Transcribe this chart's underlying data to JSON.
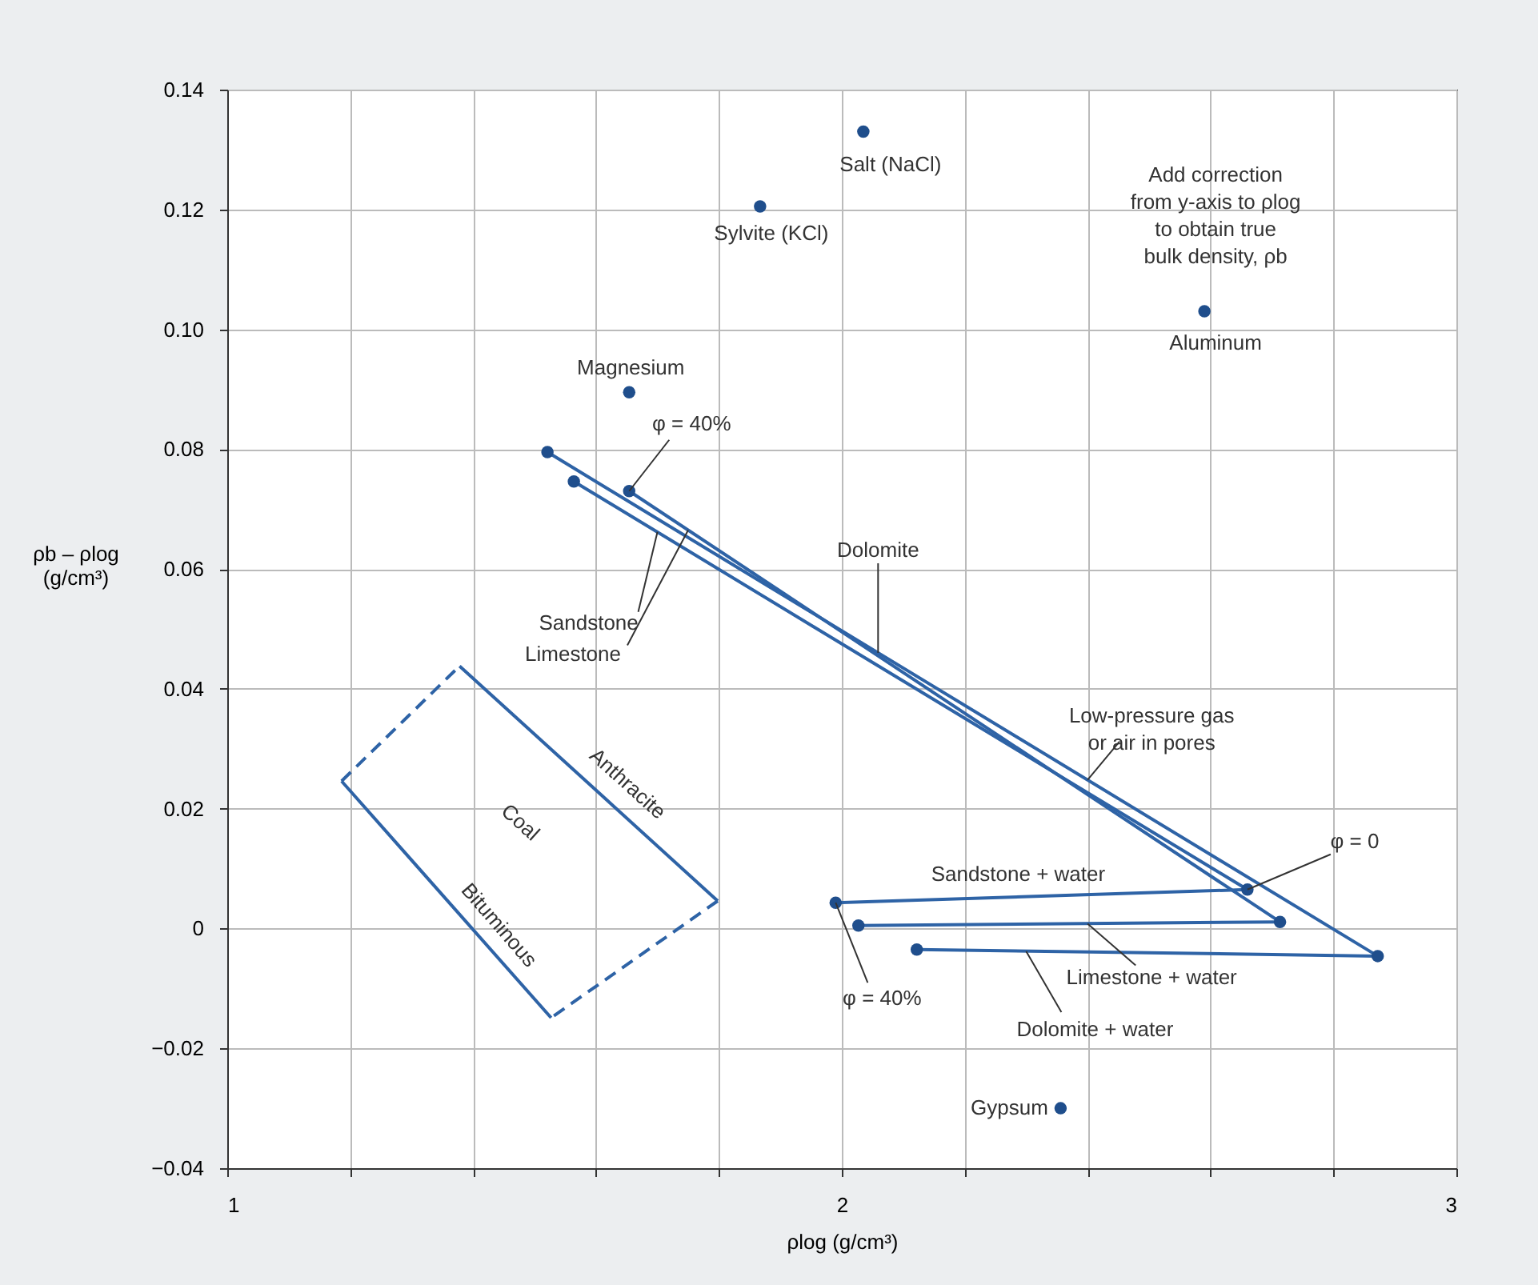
{
  "chart_data": {
    "type": "line",
    "xlabel": "ρlog (g/cm³)",
    "ylabel": "ρb – ρlog\n(g/cm³)",
    "xlim": [
      1,
      3
    ],
    "ylim": [
      -0.04,
      0.14
    ],
    "xticks": [
      1,
      {
        "value": 1.2,
        "label": null
      },
      {
        "value": 1.4,
        "label": null
      },
      {
        "value": 1.6,
        "label": null
      },
      {
        "value": 1.8,
        "label": null
      },
      2,
      {
        "value": 2.2,
        "label": null
      },
      {
        "value": 2.4,
        "label": null
      },
      {
        "value": 2.6,
        "label": null
      },
      {
        "value": 2.8,
        "label": null
      },
      3
    ],
    "yticks": [
      {
        "value": -0.04,
        "label": "−0.04"
      },
      {
        "value": -0.02,
        "label": "−0.02"
      },
      0,
      {
        "value": 0.02,
        "label": "0.02"
      },
      {
        "value": 0.04,
        "label": "0.04"
      },
      {
        "value": 0.06,
        "label": "0.06"
      },
      {
        "value": 0.08,
        "label": "0.08"
      },
      {
        "value": 0.1,
        "label": "0.10"
      },
      {
        "value": 0.12,
        "label": "0.12"
      },
      {
        "value": 0.14,
        "label": "0.14"
      }
    ],
    "grid": true,
    "series": [
      {
        "color": "#2e63a6",
        "x": [
          1.521,
          2.872
        ],
        "values": [
          0.0795,
          -0.0046
        ]
      },
      {
        "color": "#2e63a6",
        "x": [
          1.564,
          2.66
        ],
        "values": [
          0.0746,
          0.0065
        ]
      },
      {
        "color": "#2e63a6",
        "x": [
          1.654,
          2.713
        ],
        "values": [
          0.073,
          0.0011
        ]
      },
      {
        "color": "#2e63a6",
        "x": [
          1.99,
          2.66
        ],
        "values": [
          0.0043,
          0.0065
        ]
      },
      {
        "color": "#2e63a6",
        "x": [
          2.027,
          2.713
        ],
        "values": [
          0.0005,
          0.0011
        ]
      },
      {
        "color": "#2e63a6",
        "x": [
          2.122,
          2.872
        ],
        "values": [
          -0.0035,
          -0.0046
        ]
      },
      {
        "color": "#2e63a6",
        "x": [
          1.378,
          1.798
        ],
        "values": [
          0.0438,
          0.0046
        ]
      },
      {
        "color": "#2e63a6",
        "x": [
          1.186,
          1.527
        ],
        "values": [
          0.0246,
          -0.0149
        ]
      },
      {
        "color": "#2e63a6",
        "line_style": "dashed",
        "x": [
          1.186,
          1.378
        ],
        "values": [
          0.0246,
          0.0438
        ]
      },
      {
        "color": "#2e63a6",
        "line_style": "dashed",
        "x": [
          1.798,
          1.527
        ],
        "values": [
          0.0046,
          -0.0149
        ]
      },
      {
        "type": "scatter",
        "marker": "circle",
        "color": "#1f4e8c",
        "x": [
          2.035,
          1.867,
          2.59,
          1.654,
          2.356,
          1.521,
          1.564,
          1.654,
          2.66,
          2.713,
          2.872,
          1.99,
          2.027,
          2.122
        ],
        "values": [
          0.133,
          0.1205,
          0.103,
          0.0895,
          -0.03,
          0.0795,
          0.0746,
          0.073,
          0.0065,
          0.0011,
          -0.0046,
          0.0043,
          0.0005,
          -0.0035
        ]
      }
    ],
    "annotations": [
      {
        "text": "Salt (NaCl)",
        "x": 2.035,
        "y": 0.133
      },
      {
        "text": "Sylvite (KCl)",
        "x": 1.867,
        "y": 0.1205
      },
      {
        "text": "Add correction\nfrom y-axis to ρlog\nto obtain true\nbulk density, ρb",
        "x": 2.59,
        "y": 0.103
      },
      {
        "text": "Aluminum",
        "x": 2.59,
        "y": 0.103
      },
      {
        "text": "Magnesium",
        "x": 1.654,
        "y": 0.0895
      },
      {
        "text": "φ = 40%",
        "x": 1.654,
        "y": 0.073
      },
      {
        "text": "Dolomite",
        "x": 2.059,
        "y": 0.046
      },
      {
        "text": "Sandstone",
        "x": 1.7,
        "y": 0.0662
      },
      {
        "text": "Limestone",
        "x": 1.75,
        "y": 0.0665
      },
      {
        "text": "Low-pressure gas\nor air in pores",
        "x": 2.4,
        "y": 0.0248
      },
      {
        "text": "Anthracite",
        "x": 1.6,
        "y": 0.0231
      },
      "Coal",
      {
        "text": "Bituminous",
        "x": 1.394,
        "y": 0.0005
      },
      {
        "text": "φ = 0",
        "x": 2.66,
        "y": 0.0065
      },
      {
        "text": "Sandstone + water",
        "x": 2.287,
        "y": 0.0053
      },
      {
        "text": "φ = 40%",
        "x": 1.99,
        "y": 0.0043
      },
      {
        "text": "Limestone + water",
        "x": 2.4,
        "y": 0.0008
      },
      {
        "text": "Dolomite + water",
        "x": 2.3,
        "y": -0.0038
      },
      {
        "text": "Gypsum",
        "x": 2.356,
        "y": -0.03
      }
    ]
  }
}
